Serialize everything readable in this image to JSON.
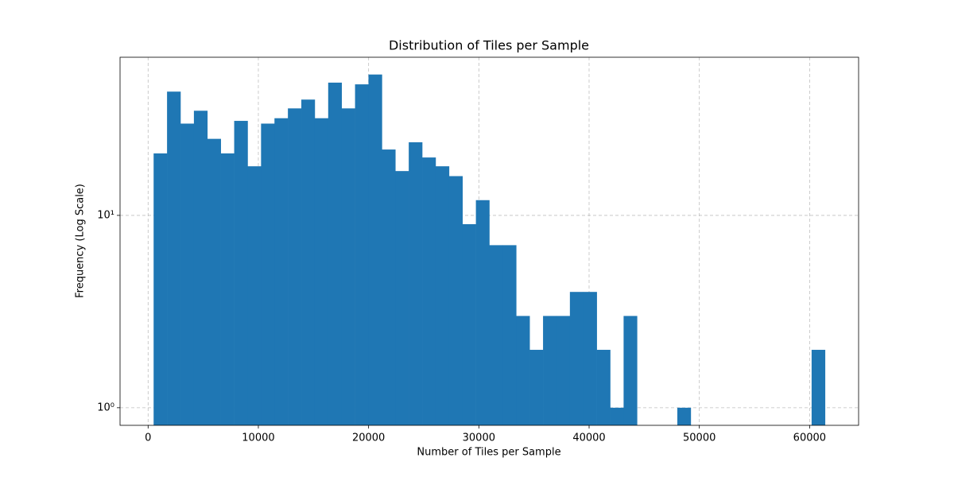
{
  "chart_data": {
    "type": "histogram",
    "title": "Distribution of Tiles per Sample",
    "xlabel": "Number of Tiles per Sample",
    "ylabel": "Frequency (Log Scale)",
    "bins": [
      500,
      1718,
      2936,
      4154,
      5372,
      6590,
      7808,
      9026,
      10244,
      11462,
      12680,
      13898,
      15116,
      16334,
      17552,
      18770,
      19988,
      21206,
      22424,
      23642,
      24860,
      26078,
      27296,
      28514,
      29732,
      30950,
      32168,
      33386,
      34604,
      35822,
      37040,
      38258,
      39476,
      40694,
      41912,
      43130,
      44348,
      45566,
      46784,
      48002,
      49220,
      50438,
      51656,
      52874,
      54092,
      55310,
      56528,
      57746,
      58964,
      60182,
      61400
    ],
    "values": [
      21,
      44,
      30,
      35,
      25,
      21,
      31,
      18,
      30,
      32,
      36,
      40,
      32,
      49,
      36,
      48,
      54,
      22,
      17,
      24,
      20,
      18,
      16,
      9,
      12,
      7,
      7,
      3,
      2,
      3,
      3,
      4,
      4,
      2,
      1,
      3,
      0,
      0,
      0,
      1,
      0,
      0,
      0,
      0,
      0,
      0,
      0,
      0,
      0,
      2
    ],
    "color": "#1f77b4",
    "xlim": [
      -2545,
      64445
    ],
    "xticks": [
      0,
      10000,
      20000,
      30000,
      40000,
      50000,
      60000
    ],
    "ylim": [
      0.81,
      66.4
    ],
    "yticks": [
      {
        "value": 1,
        "label": "10⁰"
      },
      {
        "value": 10,
        "label": "10¹"
      }
    ],
    "log_y": true,
    "grid": true
  }
}
